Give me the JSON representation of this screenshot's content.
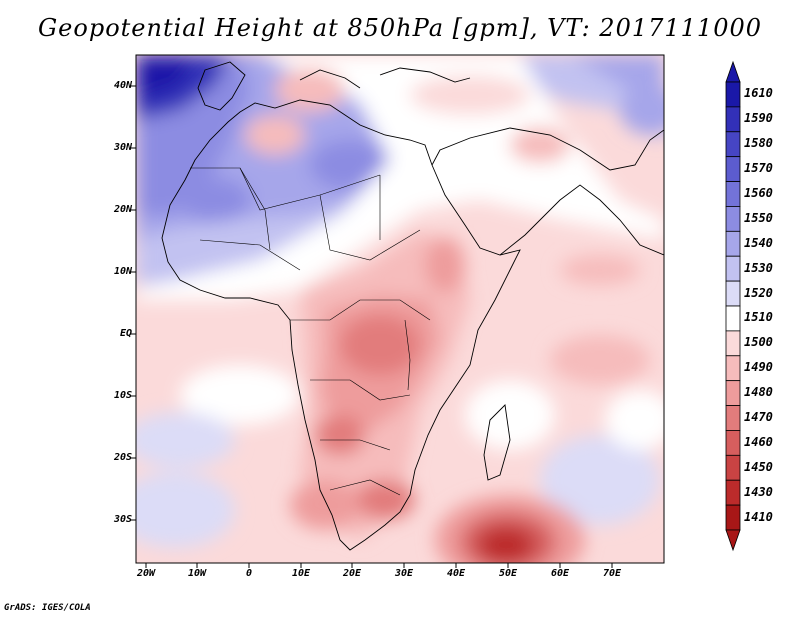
{
  "title": "Geopotential Height at 850hPa [gpm], VT: 2017111000",
  "map": {
    "lat_labels": [
      "40N",
      "30N",
      "20N",
      "10N",
      "EQ",
      "10S",
      "20S",
      "30S"
    ],
    "lon_labels": [
      "20W",
      "10W",
      "0",
      "10E",
      "20E",
      "30E",
      "40E",
      "50E",
      "60E",
      "70E"
    ],
    "extent": {
      "lon_min": -22,
      "lon_max": 80,
      "lat_min": -37,
      "lat_max": 45
    }
  },
  "colorbar": {
    "levels": [
      "1610",
      "1590",
      "1580",
      "1570",
      "1560",
      "1550",
      "1540",
      "1530",
      "1520",
      "1510",
      "1500",
      "1490",
      "1480",
      "1470",
      "1460",
      "1450",
      "1430",
      "1410"
    ],
    "colors": [
      "#1a18a8",
      "#3230b8",
      "#4645c4",
      "#5c5ccf",
      "#7373d9",
      "#8c8ce2",
      "#a6a6ea",
      "#c2c2f1",
      "#dcdcf7",
      "#ffffff",
      "#fbdada",
      "#f6bcbc",
      "#ee9c9c",
      "#e27c7c",
      "#d65e5e",
      "#c94343",
      "#bc2b2b",
      "#a81717"
    ]
  },
  "credit": "GrADS: IGES/COLA"
}
